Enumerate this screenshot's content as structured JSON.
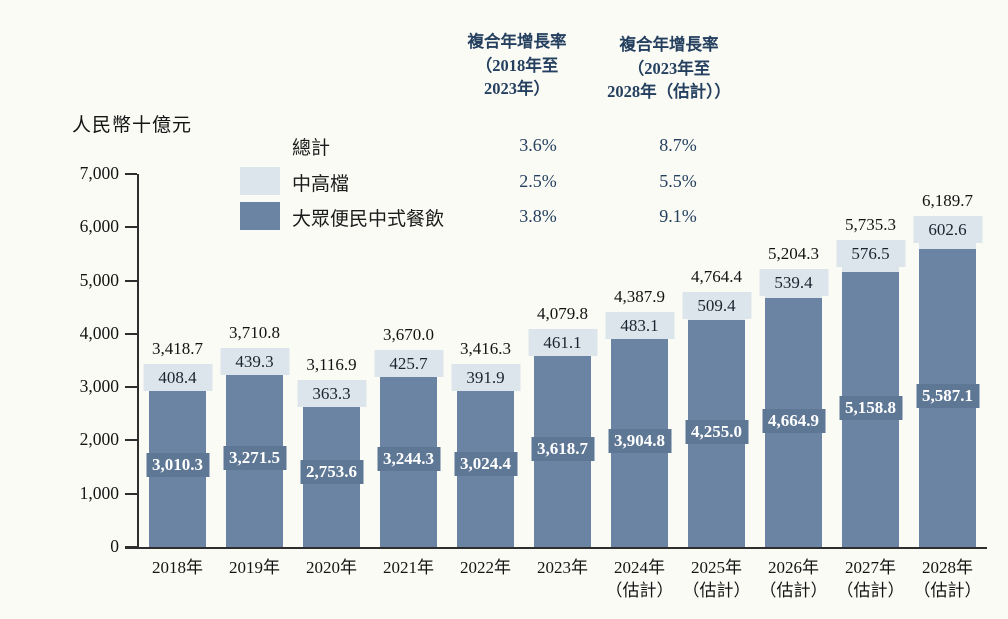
{
  "unit_label": "人民幣十億元",
  "cagr_columns": [
    {
      "line1": "複合年增長率",
      "line2": "（2018年至",
      "line3": "2023年）"
    },
    {
      "line1": "複合年增長率",
      "line2": "（2023年至",
      "line3": "2028年（估計））"
    }
  ],
  "legend": {
    "rows": [
      {
        "label": "總計",
        "cagr_2018_2023": "3.6%",
        "cagr_2023_2028": "8.7%"
      },
      {
        "label": "中高檔",
        "cagr_2018_2023": "2.5%",
        "cagr_2023_2028": "5.5%"
      },
      {
        "label": "大眾便民中式餐飲",
        "cagr_2018_2023": "3.8%",
        "cagr_2023_2028": "9.1%"
      }
    ]
  },
  "colors": {
    "light_series": "#dde5ec",
    "dark_series": "#6b84a3",
    "dark_badge": "#5e7795",
    "navy_text": "#25405f"
  },
  "chart_data": {
    "type": "bar",
    "stacked": true,
    "title": "",
    "ylabel": "人民幣十億元",
    "ylim": [
      0,
      7000
    ],
    "ytick_step": 1000,
    "grid": false,
    "legend_position": "top-left",
    "categories": [
      {
        "label": "2018年",
        "sublabel": ""
      },
      {
        "label": "2019年",
        "sublabel": ""
      },
      {
        "label": "2020年",
        "sublabel": ""
      },
      {
        "label": "2021年",
        "sublabel": ""
      },
      {
        "label": "2022年",
        "sublabel": ""
      },
      {
        "label": "2023年",
        "sublabel": ""
      },
      {
        "label": "2024年",
        "sublabel": "（估計）"
      },
      {
        "label": "2025年",
        "sublabel": "（估計）"
      },
      {
        "label": "2026年",
        "sublabel": "（估計）"
      },
      {
        "label": "2027年",
        "sublabel": "（估計）"
      },
      {
        "label": "2028年",
        "sublabel": "（估計）"
      }
    ],
    "series": [
      {
        "name": "中高檔",
        "values": [
          408.4,
          439.3,
          363.3,
          425.7,
          391.9,
          461.1,
          483.1,
          509.4,
          539.4,
          576.5,
          602.6
        ]
      },
      {
        "name": "大眾便民中式餐飲",
        "values": [
          3010.3,
          3271.5,
          2753.6,
          3244.3,
          3024.4,
          3618.7,
          3904.8,
          4255.0,
          4664.9,
          5158.8,
          5587.1
        ]
      }
    ],
    "totals": [
      3418.7,
      3710.8,
      3116.9,
      3670.0,
      3416.3,
      4079.8,
      4387.9,
      4764.4,
      5204.3,
      5735.3,
      6189.7
    ]
  }
}
